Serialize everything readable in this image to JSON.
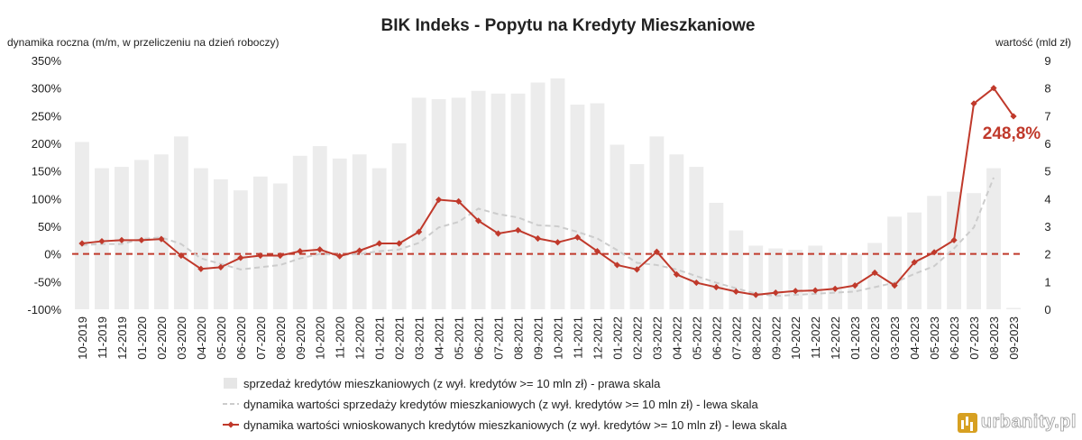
{
  "chart_data": {
    "type": "bar+line",
    "title": "BIK Indeks - Popytu na Kredyty Mieszkaniowe",
    "ylabel_left": "dynamika roczna (m/m, w przeliczeniu na dzień roboczy)",
    "ylabel_right": "wartość (mld zł)",
    "ylim_left": [
      -100,
      350
    ],
    "ylim_right": [
      0,
      9
    ],
    "yticks_left": [
      "-100%",
      "-50%",
      "0%",
      "50%",
      "100%",
      "150%",
      "200%",
      "250%",
      "300%",
      "350%"
    ],
    "yticks_right": [
      "0",
      "1",
      "2",
      "3",
      "4",
      "5",
      "6",
      "7",
      "8",
      "9"
    ],
    "categories": [
      "10-2019",
      "11-2019",
      "12-2019",
      "01-2020",
      "02-2020",
      "03-2020",
      "04-2020",
      "05-2020",
      "06-2020",
      "07-2020",
      "08-2020",
      "09-2020",
      "10-2020",
      "11-2020",
      "12-2020",
      "01-2021",
      "02-2021",
      "03-2021",
      "04-2021",
      "05-2021",
      "06-2021",
      "07-2021",
      "08-2021",
      "09-2021",
      "10-2021",
      "11-2021",
      "12-2021",
      "01-2022",
      "02-2022",
      "03-2022",
      "04-2022",
      "05-2022",
      "06-2022",
      "07-2022",
      "08-2022",
      "09-2022",
      "10-2022",
      "11-2022",
      "12-2022",
      "01-2023",
      "02-2023",
      "03-2023",
      "04-2023",
      "05-2023",
      "06-2023",
      "07-2023",
      "08-2023",
      "09-2023"
    ],
    "series": [
      {
        "name": "sprzedaż kredytów mieszkaniowych (z wył. kredytów >= 10 mln zł) - prawa skala",
        "kind": "bar",
        "axis": "right",
        "color": "#ececec",
        "values": [
          6.05,
          5.1,
          5.15,
          5.4,
          5.6,
          6.25,
          5.1,
          4.7,
          4.3,
          4.8,
          4.55,
          5.55,
          5.9,
          5.45,
          5.6,
          5.1,
          6.0,
          7.65,
          7.6,
          7.65,
          7.9,
          7.8,
          7.8,
          8.2,
          8.35,
          7.4,
          7.45,
          5.95,
          5.25,
          6.25,
          5.6,
          5.15,
          3.85,
          2.85,
          2.3,
          2.2,
          2.15,
          2.3,
          2.0,
          2.0,
          2.4,
          3.35,
          3.5,
          4.1,
          4.25,
          4.2,
          5.1,
          0.05
        ]
      },
      {
        "name": "dynamika wartości sprzedaży kredytów mieszkaniowych (z wył. kredytów >= 10 mln zł) - lewa skala",
        "kind": "line",
        "style": "dashed",
        "axis": "left",
        "color": "#cccccc",
        "values": [
          16,
          18,
          18,
          27,
          30,
          18,
          -8,
          -18,
          -28,
          -24,
          -20,
          -8,
          0,
          -2,
          0,
          5,
          8,
          20,
          48,
          58,
          82,
          72,
          66,
          52,
          50,
          40,
          28,
          7,
          -16,
          -20,
          -28,
          -40,
          -52,
          -62,
          -72,
          -76,
          -74,
          -72,
          -70,
          -68,
          -60,
          -52,
          -36,
          -22,
          10,
          48,
          138,
          null
        ]
      },
      {
        "name": "dynamika wartości wnioskowanych kredytów mieszkaniowych (z wył. kredytów >= 10 mln zł) - lewa skala",
        "kind": "line",
        "style": "solid-diamond",
        "axis": "left",
        "color": "#c0392b",
        "values": [
          19,
          23,
          25,
          25,
          27,
          -3,
          -27,
          -24,
          -7,
          -3,
          -3,
          5,
          8,
          -4,
          6,
          19,
          19,
          40,
          98,
          95,
          60,
          37,
          43,
          28,
          21,
          30,
          5,
          -20,
          -28,
          4,
          -37,
          -52,
          -60,
          -68,
          -74,
          -70,
          -67,
          -66,
          -63,
          -57,
          -34,
          -57,
          -15,
          3,
          25,
          272,
          300,
          249
        ]
      }
    ],
    "annotation": {
      "text": "248,8%",
      "category": "09-2023",
      "value": 248.8
    },
    "reference_line": {
      "value": 0,
      "axis": "left",
      "color": "#c0392b",
      "style": "dashed"
    },
    "legend": {
      "placement": "bottom-center"
    },
    "grid": false
  },
  "watermark": {
    "text": "urbanity.pl",
    "icon": "building-bars-icon",
    "color": "#d7a021"
  }
}
